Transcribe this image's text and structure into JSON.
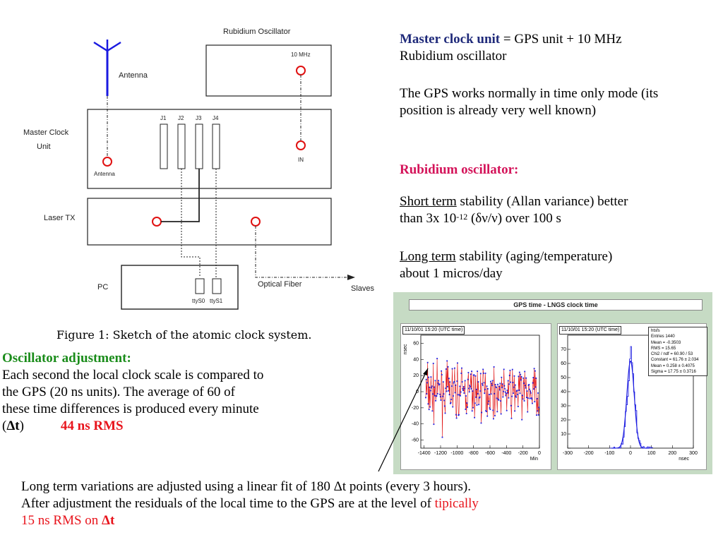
{
  "diagram": {
    "rubidium_title": "Rubidium Oscillator",
    "freq_label": "10 MHz",
    "antenna_label": "Antenna",
    "master_label_1": "Master Clock",
    "master_label_2": "Unit",
    "antenna_port": "Antenna",
    "in_port": "IN",
    "jacks": [
      "J1",
      "J2",
      "J3",
      "J4"
    ],
    "laser_label": "Laser TX",
    "pc_label": "PC",
    "tty0": "ttyS0",
    "tty1": "ttyS1",
    "fiber_label": "Optical Fiber",
    "slaves_label": "Slaves",
    "caption": "Figure 1: Sketch of the atomic clock system."
  },
  "right": {
    "master_clock_term": "Master clock unit",
    "master_clock_def_1": " =  GPS unit + 10 MHz",
    "master_clock_def_2": "Rubidium oscillator",
    "gps_mode": "The GPS works normally in time only mode (its position is already very well known)",
    "rubidium_heading": "Rubidium oscillator:",
    "short_term": "Short term",
    "short_term_text_1": " stability (Allan variance) better",
    "short_term_text_2a": "than 3x 10",
    "short_term_exp": "-12",
    "short_term_text_2b": " (δν/ν) over 100 s",
    "long_term": "Long term",
    "long_term_text_1": " stability (aging/temperature)",
    "long_term_text_2": "about 1 micros/day"
  },
  "left": {
    "osc_heading": "Oscillator adjustment:",
    "osc_text_1": "Each second the local clock scale is compared to",
    "osc_text_2": "the GPS (20 ns units). The average of 60 of",
    "osc_text_3": "these time differences is produced every minute",
    "delta_open": "(",
    "delta_t": "Δt",
    "delta_close": ")",
    "rms": "44 ns RMS"
  },
  "bottom": {
    "line_1": "Long term variations are adjusted using a linear fit of 180 Δt points (every 3 hours).",
    "line_2a": "After adjustment the residuals of the local time  to the GPS  are at the level of  ",
    "line_2b": "tipically",
    "line_3a": "15 ns RMS on ",
    "line_3b": "Δt"
  },
  "plots": {
    "title": "GPS time - LNGS clock time",
    "left_stamp": "11/10/01 15:20 (UTC time)",
    "right_stamp": "11/10/01 15:20 (UTC time)",
    "left_ylabel": "nsec",
    "left_xlabel": "Min",
    "right_xlabel": "nsec",
    "stats": [
      "htsfs",
      "Entries  1440",
      "Mean  = -0.3503",
      "RMS  =  15.65",
      "Chi2 / ndf = 60.90 / 53",
      "Constant = 61.76 ± 2.034",
      "Mean  = 0.258 ± 0.4075",
      "Sigma = 17.75 ± 0.3716"
    ]
  },
  "chart_data": [
    {
      "type": "line",
      "title": "",
      "xlabel": "Min",
      "ylabel": "nsec",
      "xlim": [
        -1440,
        0
      ],
      "ylim": [
        -70,
        70
      ],
      "x_ticks": [
        -1400,
        -1200,
        -1000,
        -800,
        -600,
        -400,
        -200,
        0
      ],
      "y_ticks": [
        -60,
        -40,
        -20,
        0,
        20,
        40,
        60
      ],
      "series": [
        {
          "values_rms": 15.65,
          "values_mean": -0.35
        }
      ],
      "colors": {
        "line": "#e01010",
        "markers": "#1a1ae0"
      }
    },
    {
      "type": "line",
      "title": "",
      "xlabel": "nsec",
      "ylabel": "",
      "xlim": [
        -300,
        300
      ],
      "ylim": [
        0,
        80
      ],
      "x_ticks": [
        -300,
        -200,
        -100,
        0,
        100,
        200,
        300
      ],
      "y_ticks": [
        0,
        10,
        20,
        30,
        40,
        50,
        60,
        70
      ],
      "peak": 72,
      "fit": {
        "constant": 61.76,
        "mean": 0.258,
        "sigma": 17.75
      },
      "colors": {
        "histogram": "#1a1ae0",
        "fit": "#1a1ae0"
      }
    }
  ]
}
